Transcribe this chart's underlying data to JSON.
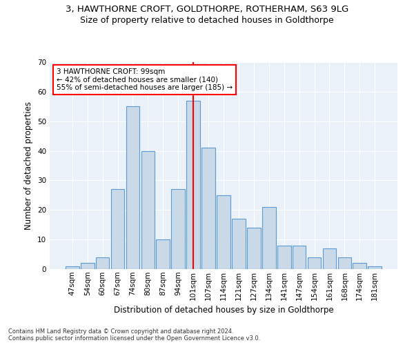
{
  "title1": "3, HAWTHORNE CROFT, GOLDTHORPE, ROTHERHAM, S63 9LG",
  "title2": "Size of property relative to detached houses in Goldthorpe",
  "xlabel": "Distribution of detached houses by size in Goldthorpe",
  "ylabel": "Number of detached properties",
  "categories": [
    "47sqm",
    "54sqm",
    "60sqm",
    "67sqm",
    "74sqm",
    "80sqm",
    "87sqm",
    "94sqm",
    "101sqm",
    "107sqm",
    "114sqm",
    "121sqm",
    "127sqm",
    "134sqm",
    "141sqm",
    "147sqm",
    "154sqm",
    "161sqm",
    "168sqm",
    "174sqm",
    "181sqm"
  ],
  "values": [
    1,
    2,
    4,
    27,
    55,
    40,
    10,
    27,
    57,
    41,
    25,
    17,
    14,
    21,
    8,
    8,
    4,
    7,
    4,
    2,
    1
  ],
  "bar_color": "#c9d9e8",
  "bar_edge_color": "#5b9bd5",
  "red_line_index": 8,
  "annotation_text": "3 HAWTHORNE CROFT: 99sqm\n← 42% of detached houses are smaller (140)\n55% of semi-detached houses are larger (185) →",
  "footer": "Contains HM Land Registry data © Crown copyright and database right 2024.\nContains public sector information licensed under the Open Government Licence v3.0.",
  "ylim": [
    0,
    70
  ],
  "yticks": [
    0,
    10,
    20,
    30,
    40,
    50,
    60,
    70
  ],
  "bg_color": "#eaf1f8",
  "grid_color": "#ffffff",
  "title1_fontsize": 9.5,
  "title2_fontsize": 9,
  "xlabel_fontsize": 8.5,
  "ylabel_fontsize": 8.5,
  "tick_fontsize": 7.5,
  "annotation_fontsize": 7.5,
  "footer_fontsize": 6
}
